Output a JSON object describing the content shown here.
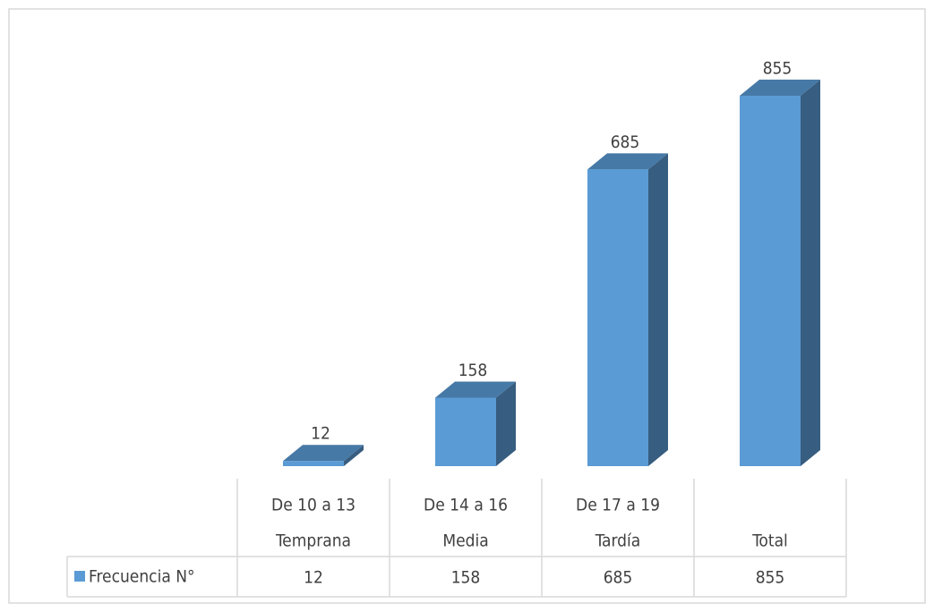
{
  "chart_data": {
    "type": "bar3d",
    "categories": [
      [
        "De 10 a 13",
        "Temprana"
      ],
      [
        "De 14 a 16",
        "Media"
      ],
      [
        "De 17 a 19",
        "Tardía"
      ],
      [
        "Total"
      ]
    ],
    "series": [
      {
        "name": "Frecuencia N°",
        "color": "#5b9bd5",
        "values": [
          12,
          158,
          685,
          855
        ]
      }
    ]
  }
}
